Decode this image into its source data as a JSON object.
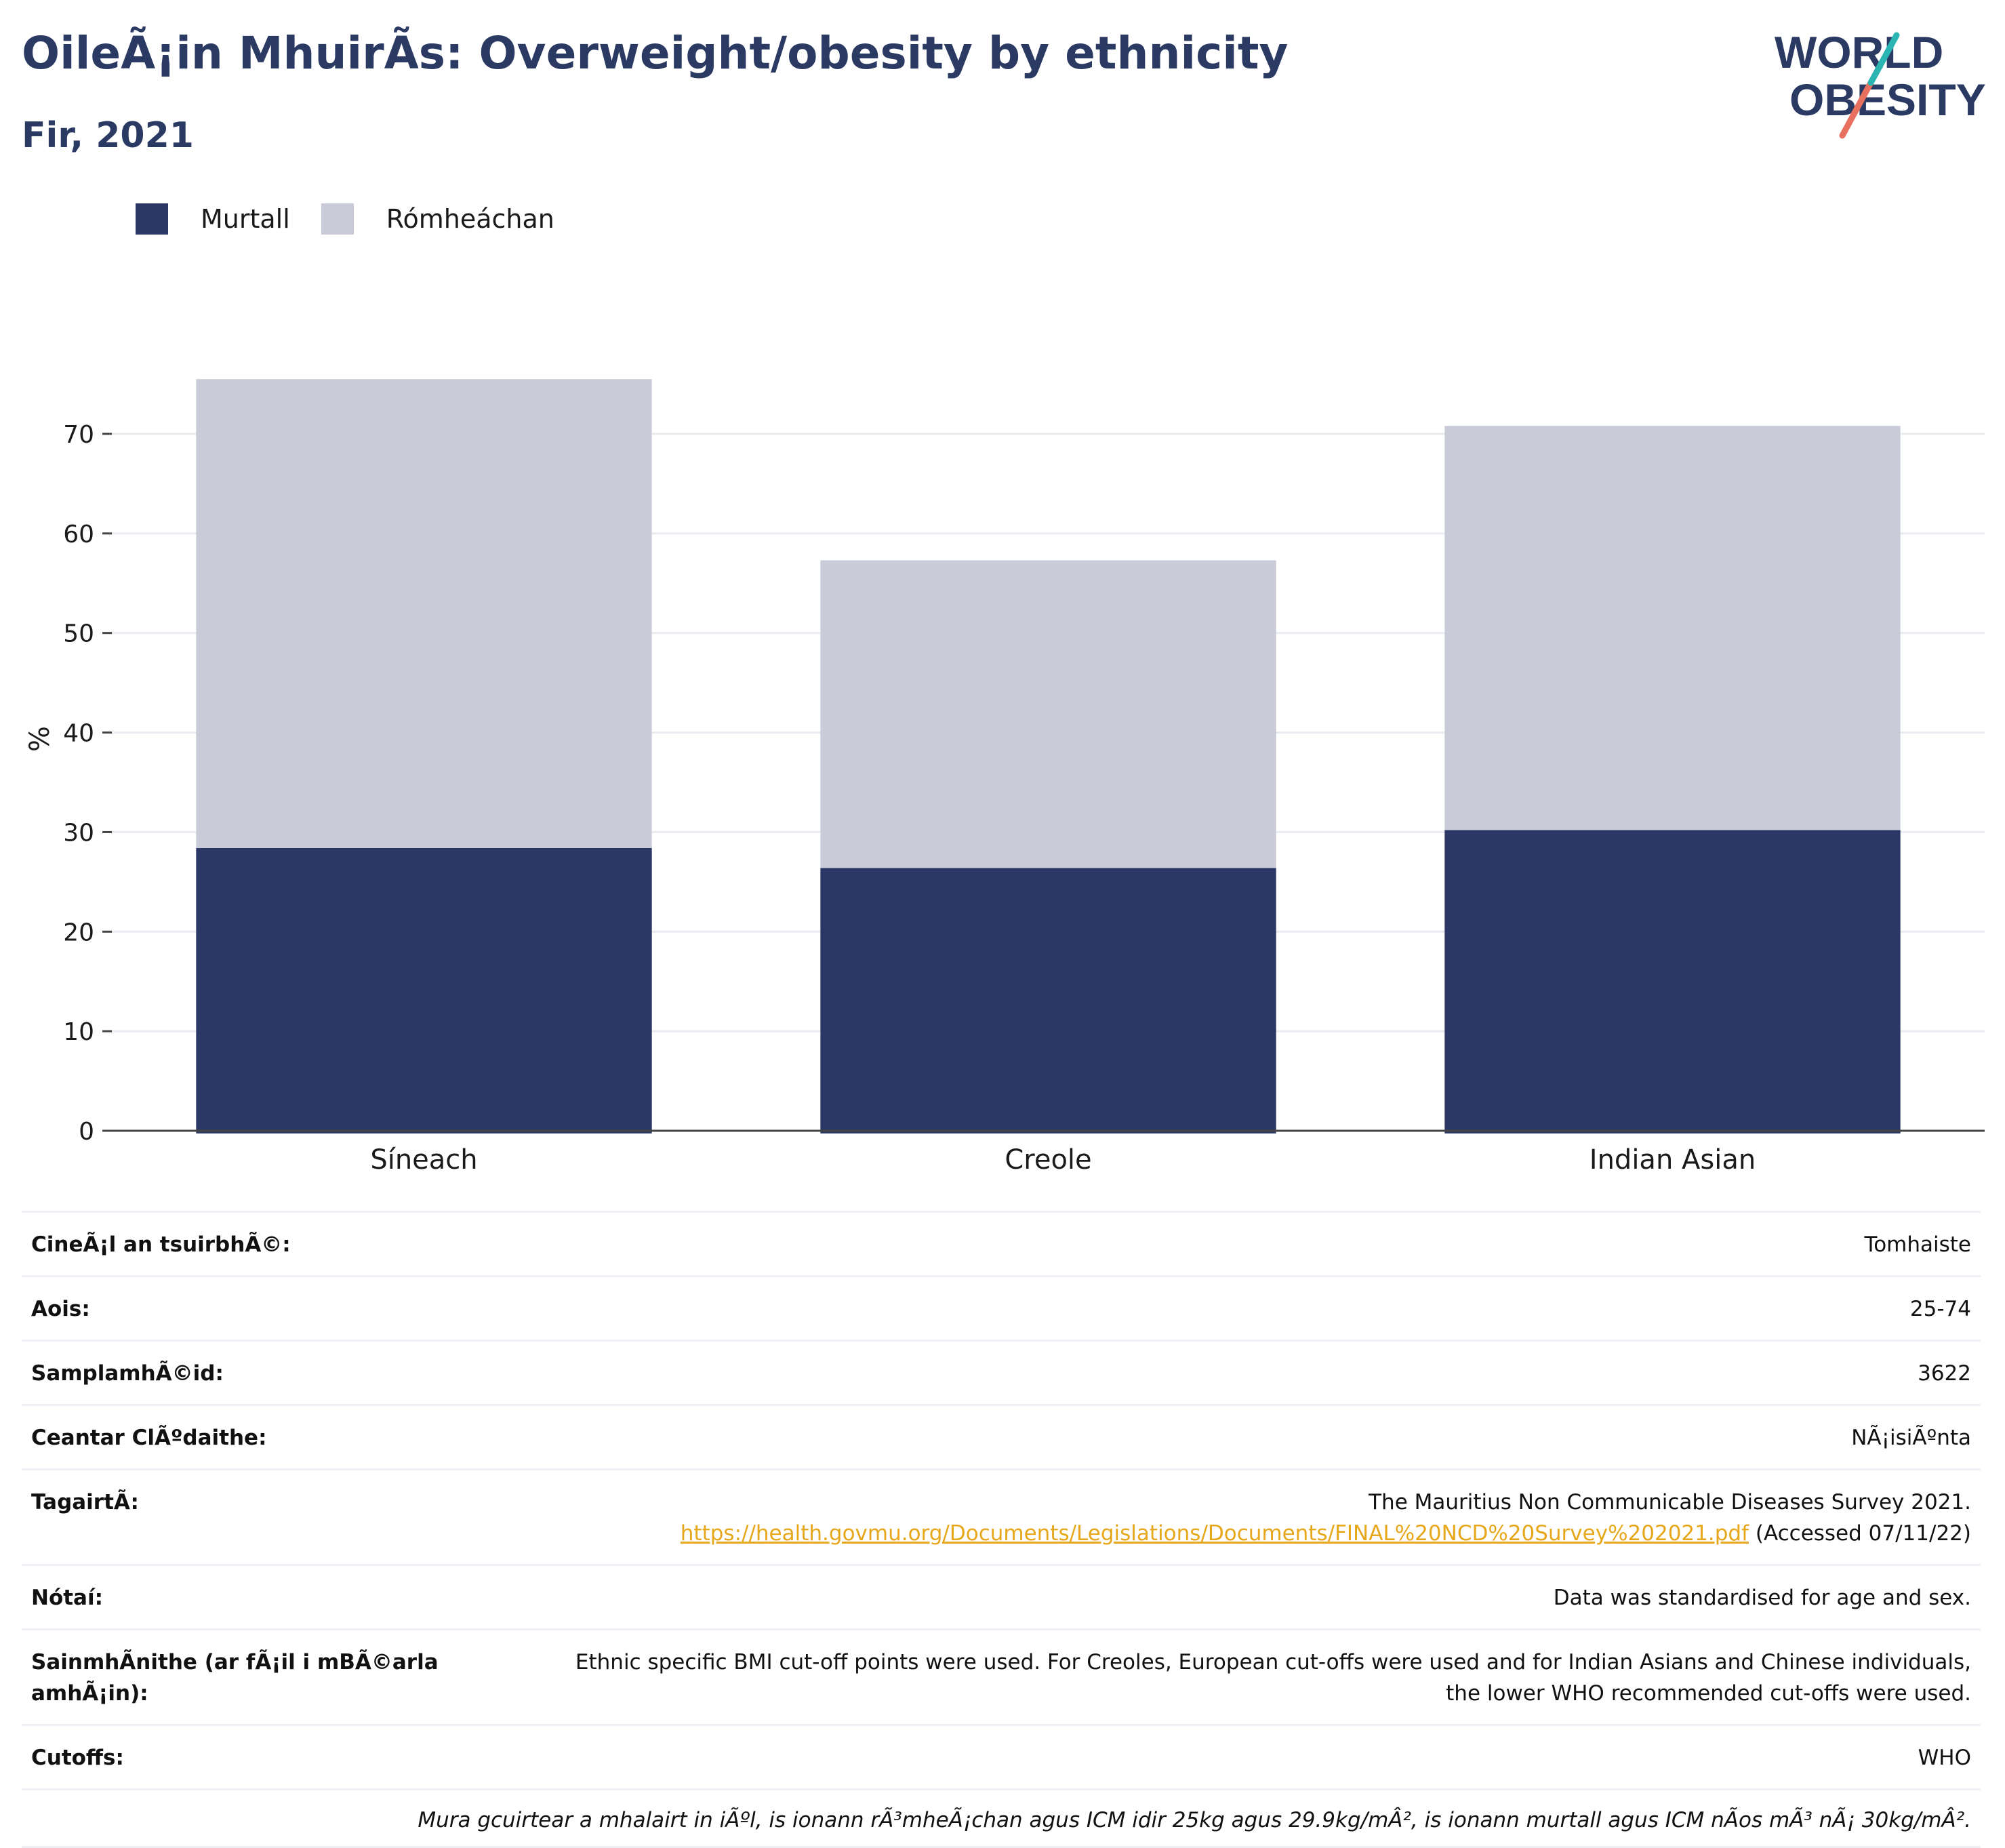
{
  "header": {
    "title": "OileÃ¡in MhuirÃ­s: Overweight/obesity by ethnicity",
    "subtitle": "Fir, 2021"
  },
  "logo": {
    "line1": "WORLD",
    "line2": "OBESITY"
  },
  "colors": {
    "obese": "#2b3764",
    "overweight": "#c9ccd8",
    "title": "#2b3a63",
    "link": "#e7a71a"
  },
  "chart_data": {
    "type": "bar",
    "stacked": true,
    "categories": [
      "Síneach",
      "Creole",
      "Indian Asian"
    ],
    "series": [
      {
        "name": "Murtall",
        "values": [
          28.4,
          26.4,
          30.2
        ]
      },
      {
        "name": "Rómheáchan",
        "values": [
          47.1,
          30.9,
          40.6
        ]
      }
    ],
    "ylabel": "%",
    "ylim": [
      0,
      80
    ],
    "yticks": [
      0,
      10,
      20,
      30,
      40,
      50,
      60,
      70
    ],
    "legend_position": "top-left",
    "grid": true
  },
  "info": {
    "rows": [
      {
        "key": "CineÃ¡l an tsuirbhÃ©:",
        "value": "Tomhaiste"
      },
      {
        "key": "Aois:",
        "value": "25-74"
      },
      {
        "key": "SamplamhÃ©id:",
        "value": "3622"
      },
      {
        "key": "Ceantar ClÃºdaithe:",
        "value": "NÃ¡isiÃºnta"
      }
    ],
    "reference": {
      "key": "TagairtÃ:",
      "line1": "The Mauritius Non Communicable Diseases Survey 2021.",
      "url": "https://health.govmu.org/Documents/Legislations/Documents/FINAL%20NCD%20Survey%202021.pdf",
      "accessed": "(Accessed 07/11/22)"
    },
    "notes": {
      "key": "Nótaí:",
      "value": "Data was standardised for age and sex."
    },
    "definitions": {
      "key": "SainmhÃ­nithe (ar fÃ¡il i mBÃ©arla amhÃ¡in):",
      "line1": "Ethnic specific BMI cut-off points were used. For Creoles, European cut-offs were used and for Indian Asians and Chinese individuals,",
      "line2": "the lower WHO recommended cut-offs were used."
    },
    "cutoffs": {
      "key": "Cutoffs:",
      "value": "WHO"
    },
    "footnote": "Mura gcuirtear a mhalairt in iÃºl, is ionann rÃ³mheÃ¡chan agus ICM idir 25kg agus 29.9kg/mÂ², is ionann murtall agus ICM nÃ­os mÃ³ nÃ¡ 30kg/mÂ²."
  }
}
